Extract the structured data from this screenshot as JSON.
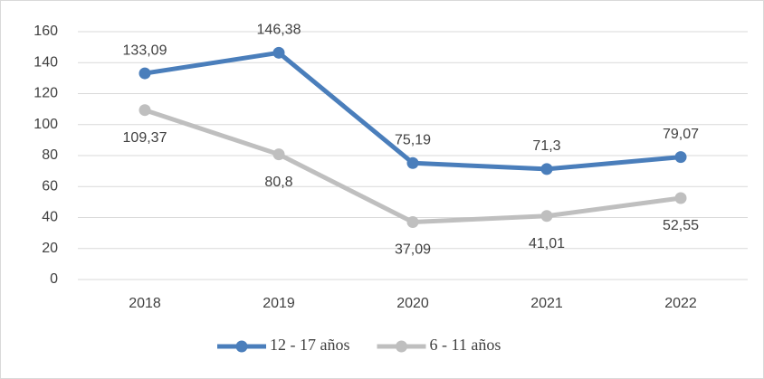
{
  "chart_data": {
    "type": "line",
    "categories": [
      "2018",
      "2019",
      "2020",
      "2021",
      "2022"
    ],
    "series": [
      {
        "name": "12 - 17 años",
        "color": "#4a7ebb",
        "values": [
          133.09,
          146.38,
          75.19,
          71.3,
          79.07
        ],
        "value_labels": [
          "133,09",
          "146,38",
          "75,19",
          "71,3",
          "79,07"
        ]
      },
      {
        "name": "6 - 11 años",
        "color": "#bfbfbf",
        "values": [
          109.37,
          80.8,
          37.09,
          41.01,
          52.55
        ],
        "value_labels": [
          "109,37",
          "80,8",
          "37,09",
          "41,01",
          "52,55"
        ]
      }
    ],
    "ylim": [
      0,
      160
    ],
    "yticks": [
      0,
      20,
      40,
      60,
      80,
      100,
      120,
      140,
      160
    ],
    "grid": true,
    "legend": "bottom"
  }
}
